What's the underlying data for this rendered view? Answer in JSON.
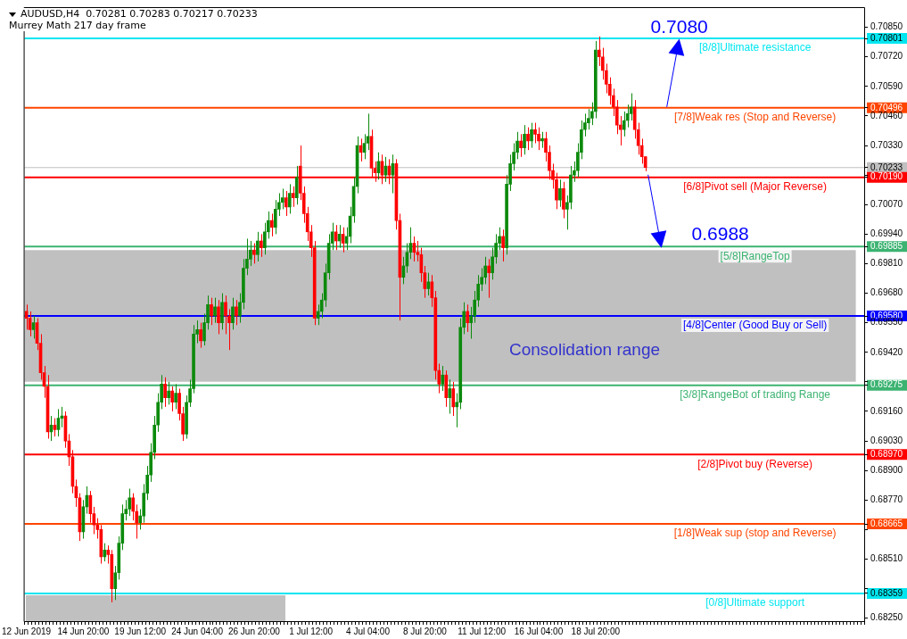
{
  "chart_data": {
    "type": "candlestick",
    "title": "AUDUSD,H4  0.70281 0.70283 0.70217 0.70233",
    "subtitle": "Murrey Math 217 day frame",
    "categories": [
      "12 Jun 2019",
      null,
      null,
      null,
      null,
      null,
      null,
      null,
      null,
      null,
      null,
      null,
      null,
      null,
      null,
      null,
      "14 Jun 20:00",
      null,
      null,
      null,
      null,
      null,
      null,
      null,
      null,
      null,
      null,
      null,
      null,
      null,
      null,
      null,
      "19 Jun 12:00",
      null,
      null,
      null,
      null,
      null,
      null,
      null,
      null,
      null,
      null,
      null,
      null,
      null,
      null,
      null,
      "24 Jun 04:00",
      null,
      null,
      null,
      null,
      null,
      null,
      null,
      null,
      null,
      null,
      null,
      null,
      null,
      null,
      null,
      "26 Jun 20:00",
      null,
      null,
      null,
      null,
      null,
      null,
      null,
      null,
      null,
      null,
      null,
      null,
      null,
      null,
      null,
      "1 Jul 12:00",
      null,
      null,
      null,
      null,
      null,
      null,
      null,
      null,
      null,
      null,
      null,
      null,
      null,
      null,
      null,
      "4 Jul 04:00",
      null,
      null,
      null,
      null,
      null,
      null,
      null,
      null,
      null,
      null,
      null,
      null,
      null,
      null,
      null,
      "8 Jul 20:00",
      null,
      null,
      null,
      null,
      null,
      null,
      null,
      null,
      null,
      null,
      null,
      null,
      null,
      null,
      null,
      "11 Jul 12:00",
      null,
      null,
      null,
      null,
      null,
      null,
      null,
      null,
      null,
      null,
      null,
      null,
      null,
      null,
      null,
      "16 Jul 04:00",
      null,
      null,
      null,
      null,
      null,
      null,
      null,
      null,
      null,
      null,
      null,
      null,
      null,
      null,
      null,
      "18 Jul 20:00",
      null,
      null,
      null,
      null,
      null,
      null,
      null,
      null,
      null,
      null,
      null,
      null,
      null,
      null,
      null,
      null,
      null,
      null,
      null,
      null,
      null,
      null,
      null,
      null,
      null,
      null,
      null,
      null,
      null,
      null,
      null,
      null,
      null,
      null,
      null,
      null,
      null,
      null,
      null,
      null,
      null,
      null,
      null,
      null,
      null,
      null,
      null,
      null,
      null,
      null,
      null,
      null,
      null,
      null,
      null,
      null,
      null,
      null,
      null,
      null,
      null,
      null,
      null,
      null,
      null,
      null,
      null,
      null,
      null,
      null,
      null,
      null,
      null,
      null,
      null
    ],
    "colors": [
      "#ff0000",
      "#ff0000",
      "#0c8a0c",
      "#ff0000",
      "#ff0000",
      "#ff0000",
      "#ff0000",
      "#0c8a0c",
      "#ff0000",
      "#0c8a0c",
      "#0c8a0c",
      "#ff0000",
      "#ff0000",
      "#ff0000",
      "#ff0000",
      "#ff0000",
      "#0c8a0c",
      "#0c8a0c",
      "#ff0000",
      "#ff0000",
      "#ff0000",
      "#ff0000",
      "#0c8a0c",
      "#ff0000",
      "#ff0000",
      "#0c8a0c",
      "#0c8a0c",
      "#0c8a0c",
      "#0c8a0c",
      "#0c8a0c",
      "#ff0000",
      "#ff0000",
      "#0c8a0c",
      "#0c8a0c",
      "#0c8a0c",
      "#0c8a0c",
      "#0c8a0c",
      "#0c8a0c",
      "#0c8a0c",
      "#ff0000",
      "#0c8a0c",
      "#ff0000",
      "#0c8a0c",
      "#ff0000",
      "#ff0000",
      "#0c8a0c",
      "#0c8a0c",
      "#0c8a0c",
      "#0c8a0c",
      "#ff0000",
      "#0c8a0c",
      "#0c8a0c",
      "#ff0000",
      "#0c8a0c",
      "#ff0000",
      "#0c8a0c",
      "#ff0000",
      "#ff0000",
      "#0c8a0c",
      "#ff0000",
      "#0c8a0c",
      "#0c8a0c",
      "#0c8a0c",
      "#0c8a0c",
      "#ff0000",
      "#0c8a0c",
      "#ff0000",
      "#0c8a0c",
      "#0c8a0c",
      "#ff0000",
      "#0c8a0c",
      "#0c8a0c",
      "#0c8a0c",
      "#ff0000",
      "#0c8a0c",
      "#ff0000",
      "#0c8a0c",
      "#ff0000",
      "#ff0000",
      "#ff0000",
      "#ff0000",
      "#ff0000",
      "#0c8a0c",
      "#0c8a0c",
      "#0c8a0c",
      "#0c8a0c",
      "#0c8a0c",
      "#ff0000",
      "#0c8a0c",
      "#ff0000",
      "#0c8a0c",
      "#0c8a0c",
      "#0c8a0c",
      "#0c8a0c",
      "#ff0000",
      "#0c8a0c",
      "#0c8a0c",
      "#ff0000",
      "#ff0000",
      "#0c8a0c",
      "#ff0000",
      "#0c8a0c",
      "#ff0000",
      "#0c8a0c",
      "#ff0000",
      "#ff0000",
      "#0c8a0c",
      "#0c8a0c",
      "#0c8a0c",
      "#ff0000",
      "#ff0000",
      "#ff0000",
      "#ff0000",
      "#0c8a0c",
      "#ff0000",
      "#ff0000",
      "#ff0000",
      "#0c8a0c",
      "#ff0000",
      "#0c8a0c",
      "#ff0000",
      "#0c8a0c",
      "#0c8a0c",
      "#0c8a0c",
      "#ff0000",
      "#0c8a0c",
      "#0c8a0c",
      "#0c8a0c",
      "#0c8a0c",
      "#0c8a0c",
      "#ff0000",
      "#0c8a0c",
      "#0c8a0c",
      "#0c8a0c",
      "#ff0000",
      "#0c8a0c",
      "#0c8a0c",
      "#0c8a0c",
      "#0c8a0c",
      "#ff0000",
      "#0c8a0c",
      "#ff0000",
      "#0c8a0c",
      "#ff0000",
      "#ff0000",
      "#0c8a0c",
      "#ff0000",
      "#ff0000",
      "#ff0000",
      "#ff0000",
      "#0c8a0c",
      "#ff0000",
      "#0c8a0c",
      "#0c8a0c",
      "#0c8a0c",
      "#0c8a0c",
      "#0c8a0c",
      "#0c8a0c",
      "#0c8a0c",
      "#0c8a0c",
      "#0c8a0c",
      "#ff0000",
      "#ff0000",
      "#ff0000",
      "#ff0000",
      "#ff0000",
      "#ff0000",
      "#ff0000",
      "#0c8a0c",
      "#0c8a0c",
      "#0c8a0c",
      "#ff0000",
      "#ff0000",
      "#ff0000",
      "#ff0000",
      null,
      null,
      null,
      null,
      null,
      null,
      null,
      null,
      null,
      null,
      null,
      null,
      null,
      null,
      null,
      null,
      null,
      null,
      null,
      null,
      null,
      null,
      null,
      null,
      null,
      null,
      null,
      null,
      null,
      null,
      null,
      null,
      null,
      null,
      null,
      null,
      null,
      null,
      null,
      null,
      null,
      null,
      null,
      null,
      null,
      null,
      null,
      null,
      null,
      null,
      null,
      null,
      null,
      null,
      null,
      null,
      null,
      null,
      null,
      null,
      null
    ],
    "ohlc": [
      [
        0.696,
        0.6963,
        0.6952,
        0.6957
      ],
      [
        0.6957,
        0.696,
        0.6949,
        0.6952
      ],
      [
        0.6952,
        0.6958,
        0.6948,
        0.6955
      ],
      [
        0.6955,
        0.6957,
        0.6943,
        0.6946
      ],
      [
        0.6946,
        0.695,
        0.693,
        0.6933
      ],
      [
        0.6933,
        0.6936,
        0.6922,
        0.6927
      ],
      [
        0.6927,
        0.6932,
        0.6904,
        0.6907
      ],
      [
        0.6907,
        0.6914,
        0.6903,
        0.691
      ],
      [
        0.691,
        0.6913,
        0.6905,
        0.6908
      ],
      [
        0.6908,
        0.6917,
        0.6905,
        0.6913
      ],
      [
        0.6913,
        0.6918,
        0.6909,
        0.6914
      ],
      [
        0.6914,
        0.6916,
        0.69,
        0.6903
      ],
      [
        0.6903,
        0.6906,
        0.6892,
        0.6896
      ],
      [
        0.6896,
        0.6899,
        0.688,
        0.6883
      ],
      [
        0.6883,
        0.6886,
        0.6874,
        0.6878
      ],
      [
        0.6878,
        0.688,
        0.6859,
        0.6863
      ],
      [
        0.6863,
        0.6877,
        0.686,
        0.6874
      ],
      [
        0.6874,
        0.6883,
        0.6871,
        0.6879
      ],
      [
        0.6879,
        0.6881,
        0.6867,
        0.6871
      ],
      [
        0.6871,
        0.6874,
        0.6862,
        0.6866
      ],
      [
        0.6866,
        0.6869,
        0.686,
        0.6864
      ],
      [
        0.6864,
        0.6866,
        0.6849,
        0.6852
      ],
      [
        0.6852,
        0.6858,
        0.685,
        0.6855
      ],
      [
        0.6855,
        0.6857,
        0.6849,
        0.6853
      ],
      [
        0.6853,
        0.6855,
        0.6832,
        0.6838
      ],
      [
        0.6838,
        0.6848,
        0.6833,
        0.6845
      ],
      [
        0.6845,
        0.6861,
        0.6842,
        0.6858
      ],
      [
        0.6858,
        0.6875,
        0.6855,
        0.6871
      ],
      [
        0.6871,
        0.6877,
        0.6868,
        0.6873
      ],
      [
        0.6873,
        0.6882,
        0.687,
        0.6878
      ],
      [
        0.6878,
        0.688,
        0.6868,
        0.6872
      ],
      [
        0.6872,
        0.6875,
        0.686,
        0.6867
      ],
      [
        0.6867,
        0.6873,
        0.6864,
        0.687
      ],
      [
        0.687,
        0.6884,
        0.6867,
        0.688
      ],
      [
        0.688,
        0.6892,
        0.6877,
        0.6888
      ],
      [
        0.6888,
        0.6902,
        0.6885,
        0.6898
      ],
      [
        0.6898,
        0.6914,
        0.6895,
        0.691
      ],
      [
        0.691,
        0.6924,
        0.6907,
        0.692
      ],
      [
        0.692,
        0.6932,
        0.6917,
        0.6928
      ],
      [
        0.6928,
        0.6931,
        0.6918,
        0.6922
      ],
      [
        0.6922,
        0.6929,
        0.6919,
        0.6925
      ],
      [
        0.6925,
        0.6927,
        0.6916,
        0.692
      ],
      [
        0.692,
        0.6928,
        0.6917,
        0.6924
      ],
      [
        0.6924,
        0.6926,
        0.6912,
        0.6915
      ],
      [
        0.6915,
        0.6918,
        0.6903,
        0.6906
      ],
      [
        0.6906,
        0.6923,
        0.6904,
        0.692
      ],
      [
        0.692,
        0.693,
        0.6918,
        0.6926
      ],
      [
        0.6926,
        0.6954,
        0.6924,
        0.695
      ],
      [
        0.695,
        0.6956,
        0.6946,
        0.6952
      ],
      [
        0.6952,
        0.6955,
        0.6944,
        0.6947
      ],
      [
        0.6947,
        0.6959,
        0.6945,
        0.6955
      ],
      [
        0.6955,
        0.6967,
        0.6952,
        0.6963
      ],
      [
        0.6963,
        0.6966,
        0.6954,
        0.6958
      ],
      [
        0.6958,
        0.6966,
        0.6955,
        0.6962
      ],
      [
        0.6962,
        0.6965,
        0.695,
        0.6955
      ],
      [
        0.6955,
        0.6968,
        0.6952,
        0.6964
      ],
      [
        0.6964,
        0.6967,
        0.695,
        0.6958
      ],
      [
        0.6958,
        0.6961,
        0.6943,
        0.6955
      ],
      [
        0.6955,
        0.6966,
        0.6952,
        0.6962
      ],
      [
        0.6962,
        0.6965,
        0.6954,
        0.6958
      ],
      [
        0.6958,
        0.6968,
        0.6955,
        0.6964
      ],
      [
        0.6964,
        0.6983,
        0.6961,
        0.6979
      ],
      [
        0.6979,
        0.6992,
        0.6976,
        0.6983
      ],
      [
        0.6983,
        0.6991,
        0.698,
        0.6987
      ],
      [
        0.6987,
        0.699,
        0.6981,
        0.6985
      ],
      [
        0.6985,
        0.6995,
        0.6982,
        0.6991
      ],
      [
        0.6991,
        0.6994,
        0.6984,
        0.6988
      ],
      [
        0.6988,
        0.6999,
        0.6985,
        0.6995
      ],
      [
        0.6995,
        0.7004,
        0.6992,
        0.7
      ],
      [
        0.7,
        0.7003,
        0.6993,
        0.6997
      ],
      [
        0.6997,
        0.7009,
        0.6994,
        0.7005
      ],
      [
        0.7005,
        0.7012,
        0.7002,
        0.7008
      ],
      [
        0.7008,
        0.7014,
        0.7005,
        0.701
      ],
      [
        0.701,
        0.7013,
        0.7002,
        0.7006
      ],
      [
        0.7006,
        0.7016,
        0.7003,
        0.7012
      ],
      [
        0.7012,
        0.7015,
        0.7006,
        0.701
      ],
      [
        0.701,
        0.7024,
        0.7007,
        0.7019
      ],
      [
        0.7024,
        0.7033,
        0.7009,
        0.7012
      ],
      [
        0.7012,
        0.7015,
        0.6999,
        0.7003
      ],
      [
        0.7003,
        0.7006,
        0.6991,
        0.6995
      ],
      [
        0.6995,
        0.6998,
        0.6984,
        0.6988
      ],
      [
        0.6988,
        0.6991,
        0.6954,
        0.6957
      ],
      [
        0.6957,
        0.6963,
        0.6954,
        0.696
      ],
      [
        0.696,
        0.6968,
        0.6957,
        0.6965
      ],
      [
        0.6965,
        0.6981,
        0.6962,
        0.6977
      ],
      [
        0.6977,
        0.6994,
        0.6974,
        0.699
      ],
      [
        0.699,
        0.6999,
        0.6987,
        0.6995
      ],
      [
        0.6995,
        0.6998,
        0.6987,
        0.6991
      ],
      [
        0.6991,
        0.6998,
        0.6988,
        0.6994
      ],
      [
        0.6994,
        0.6997,
        0.6986,
        0.699
      ],
      [
        0.699,
        0.6997,
        0.6987,
        0.6993
      ],
      [
        0.6993,
        0.7006,
        0.699,
        0.7002
      ],
      [
        0.7002,
        0.7019,
        0.6999,
        0.7015
      ],
      [
        0.7015,
        0.7037,
        0.7012,
        0.7033
      ],
      [
        0.7033,
        0.7036,
        0.7026,
        0.703
      ],
      [
        0.703,
        0.7038,
        0.7027,
        0.7034
      ],
      [
        0.7034,
        0.7047,
        0.7031,
        0.7037
      ],
      [
        0.7037,
        0.704,
        0.7019,
        0.7023
      ],
      [
        0.7023,
        0.7026,
        0.7017,
        0.7021
      ],
      [
        0.7021,
        0.703,
        0.7018,
        0.7026
      ],
      [
        0.7026,
        0.7029,
        0.7016,
        0.702
      ],
      [
        0.702,
        0.7028,
        0.7017,
        0.7024
      ],
      [
        0.7024,
        0.7027,
        0.7016,
        0.702
      ],
      [
        0.702,
        0.7029,
        0.7012,
        0.7025
      ],
      [
        0.7025,
        0.7027,
        0.6996,
        0.7
      ],
      [
        0.7,
        0.7003,
        0.6956,
        0.6975
      ],
      [
        0.6975,
        0.6984,
        0.6972,
        0.698
      ],
      [
        0.698,
        0.699,
        0.6977,
        0.6986
      ],
      [
        0.6986,
        0.6997,
        0.6983,
        0.699
      ],
      [
        0.699,
        0.6993,
        0.6982,
        0.6986
      ],
      [
        0.6986,
        0.6991,
        0.6982,
        0.6985
      ],
      [
        0.6985,
        0.6988,
        0.6973,
        0.6977
      ],
      [
        0.6977,
        0.698,
        0.6966,
        0.697
      ],
      [
        0.697,
        0.6977,
        0.6967,
        0.6973
      ],
      [
        0.6973,
        0.6976,
        0.6962,
        0.6966
      ],
      [
        0.6966,
        0.6969,
        0.693,
        0.6934
      ],
      [
        0.6934,
        0.6937,
        0.6924,
        0.6928
      ],
      [
        0.6928,
        0.6936,
        0.6925,
        0.6932
      ],
      [
        0.6932,
        0.6934,
        0.6918,
        0.6922
      ],
      [
        0.6922,
        0.693,
        0.6915,
        0.6926
      ],
      [
        0.6926,
        0.6929,
        0.6914,
        0.6918
      ],
      [
        0.6918,
        0.6924,
        0.6909,
        0.692
      ],
      [
        0.692,
        0.6957,
        0.6917,
        0.6953
      ],
      [
        0.6953,
        0.6964,
        0.695,
        0.696
      ],
      [
        0.696,
        0.6963,
        0.6951,
        0.6955
      ],
      [
        0.6955,
        0.6962,
        0.6948,
        0.6958
      ],
      [
        0.6958,
        0.6969,
        0.6955,
        0.6965
      ],
      [
        0.6965,
        0.6976,
        0.6962,
        0.6972
      ],
      [
        0.6972,
        0.6979,
        0.6969,
        0.6975
      ],
      [
        0.6975,
        0.6984,
        0.6972,
        0.698
      ],
      [
        0.698,
        0.6983,
        0.6966,
        0.6977
      ],
      [
        0.6977,
        0.6988,
        0.6974,
        0.6984
      ],
      [
        0.6984,
        0.6994,
        0.6981,
        0.699
      ],
      [
        0.699,
        0.6997,
        0.6987,
        0.6993
      ],
      [
        0.6993,
        0.6996,
        0.6982,
        0.6988
      ],
      [
        0.6988,
        0.702,
        0.6985,
        0.7016
      ],
      [
        0.7016,
        0.7029,
        0.7013,
        0.7025
      ],
      [
        0.7025,
        0.7034,
        0.7022,
        0.703
      ],
      [
        0.703,
        0.7039,
        0.7027,
        0.7035
      ],
      [
        0.7035,
        0.7038,
        0.7028,
        0.7032
      ],
      [
        0.7032,
        0.7042,
        0.7029,
        0.7038
      ],
      [
        0.7038,
        0.7041,
        0.7031,
        0.7035
      ],
      [
        0.7035,
        0.7043,
        0.7032,
        0.704
      ],
      [
        0.704,
        0.7043,
        0.7034,
        0.7038
      ],
      [
        0.7038,
        0.7041,
        0.7031,
        0.7035
      ],
      [
        0.7035,
        0.7039,
        0.7032,
        0.7036
      ],
      [
        0.7036,
        0.7039,
        0.7026,
        0.703
      ],
      [
        0.703,
        0.7033,
        0.7018,
        0.7022
      ],
      [
        0.7022,
        0.7025,
        0.7014,
        0.7018
      ],
      [
        0.7018,
        0.7021,
        0.7005,
        0.7009
      ],
      [
        0.7009,
        0.7018,
        0.7006,
        0.7014
      ],
      [
        0.7014,
        0.7017,
        0.7001,
        0.7005
      ],
      [
        0.7005,
        0.7011,
        0.6996,
        0.7008
      ],
      [
        0.7008,
        0.7024,
        0.7005,
        0.702
      ],
      [
        0.702,
        0.7026,
        0.7017,
        0.7022
      ],
      [
        0.7022,
        0.7034,
        0.7019,
        0.703
      ],
      [
        0.703,
        0.7044,
        0.7027,
        0.704
      ],
      [
        0.704,
        0.7047,
        0.7037,
        0.7043
      ],
      [
        0.7043,
        0.7049,
        0.704,
        0.7045
      ],
      [
        0.7045,
        0.7052,
        0.7042,
        0.7048
      ],
      [
        0.7048,
        0.7079,
        0.7045,
        0.7075
      ],
      [
        0.7075,
        0.7081,
        0.7068,
        0.7072
      ],
      [
        0.7072,
        0.7076,
        0.7062,
        0.7066
      ],
      [
        0.7066,
        0.7069,
        0.7056,
        0.706
      ],
      [
        0.706,
        0.7063,
        0.7051,
        0.7055
      ],
      [
        0.7055,
        0.7058,
        0.7046,
        0.705
      ],
      [
        0.705,
        0.7053,
        0.7038,
        0.7042
      ],
      [
        0.7042,
        0.7046,
        0.7033,
        0.704
      ],
      [
        0.704,
        0.7048,
        0.7037,
        0.7044
      ],
      [
        0.7044,
        0.7051,
        0.7041,
        0.7047
      ],
      [
        0.7047,
        0.7056,
        0.7044,
        0.705
      ],
      [
        0.705,
        0.7053,
        0.7036,
        0.704
      ],
      [
        0.704,
        0.7043,
        0.7029,
        0.7033
      ],
      [
        0.7033,
        0.7036,
        0.7025,
        0.7028
      ],
      [
        0.70281,
        0.70283,
        0.70217,
        0.70233
      ],
      null,
      null,
      null,
      null,
      null,
      null,
      null,
      null,
      null,
      null,
      null,
      null,
      null,
      null,
      null,
      null,
      null,
      null,
      null,
      null,
      null,
      null,
      null,
      null,
      null,
      null,
      null,
      null,
      null,
      null,
      null,
      null,
      null,
      null,
      null,
      null,
      null,
      null,
      null,
      null,
      null,
      null,
      null,
      null,
      null,
      null,
      null,
      null,
      null,
      null,
      null,
      null,
      null,
      null,
      null,
      null,
      null,
      null,
      null,
      null,
      null
    ],
    "ylim": [
      0.68237,
      0.70935
    ],
    "yticks": [
      {
        "value": 0.7085,
        "label": "0.70850"
      },
      {
        "value": 0.70801,
        "label": "0.70801"
      },
      {
        "value": 0.7072,
        "label": "0.70720"
      },
      {
        "value": 0.7059,
        "label": "0.70590"
      },
      {
        "value": 0.70496,
        "label": "0.70496"
      },
      {
        "value": 0.7046,
        "label": "0.70460"
      },
      {
        "value": 0.7033,
        "label": "0.70330"
      },
      {
        "value": 0.70233,
        "label": "0.70233"
      },
      {
        "value": 0.702,
        "label": null
      },
      {
        "value": 0.7019,
        "label": "0.70190"
      },
      {
        "value": 0.7007,
        "label": "0.70070"
      },
      {
        "value": 0.6994,
        "label": "0.69940"
      },
      {
        "value": 0.69885,
        "label": "0.69885"
      },
      {
        "value": 0.6981,
        "label": "0.69810"
      },
      {
        "value": 0.6968,
        "label": "0.69680"
      },
      {
        "value": 0.6958,
        "label": "0.69580"
      },
      {
        "value": 0.6955,
        "label": "0.69550"
      },
      {
        "value": 0.6942,
        "label": "0.69420"
      },
      {
        "value": 0.6929,
        "label": null
      },
      {
        "value": 0.69275,
        "label": "0.69275"
      },
      {
        "value": 0.6916,
        "label": "0.69160"
      },
      {
        "value": 0.6903,
        "label": "0.69030"
      },
      {
        "value": 0.6897,
        "label": "0.68970"
      },
      {
        "value": 0.689,
        "label": "0.68900"
      },
      {
        "value": 0.6877,
        "label": "0.68770"
      },
      {
        "value": 0.68665,
        "label": "0.68665"
      },
      {
        "value": 0.6864,
        "label": null
      },
      {
        "value": 0.6851,
        "label": "0.68510"
      },
      {
        "value": 0.6838,
        "label": null
      },
      {
        "value": 0.68359,
        "label": "0.68359"
      },
      {
        "value": 0.6825,
        "label": "0.68250"
      }
    ],
    "ref_lines": [
      {
        "axis": "y",
        "value": 0.70801,
        "label": "[8/8]Ultimate resistance",
        "color": "#00e6f0"
      },
      {
        "axis": "y",
        "value": 0.70496,
        "label": "[7/8]Weak res (Stop and Reverse)",
        "color": "#ff4500"
      },
      {
        "axis": "y",
        "value": 0.70233,
        "label": null,
        "color": "#c0c0c0"
      },
      {
        "axis": "y",
        "value": 0.7019,
        "label": "[6/8]Pivot sell (Major Reverse)",
        "color": "#ff0000"
      },
      {
        "axis": "y",
        "value": 0.69885,
        "label": "[5/8]RangeTop",
        "color": "#3cb371"
      },
      {
        "axis": "y",
        "value": 0.6958,
        "label": "[4/8]Center (Good Buy or Sell)",
        "color": "#0000ff"
      },
      {
        "axis": "y",
        "value": 0.69275,
        "label": "[3/8]RangeBot of trading Range",
        "color": "#3cb371"
      },
      {
        "axis": "y",
        "value": 0.6897,
        "label": "[2/8]Pivot buy (Reverse)",
        "color": "#ff0000"
      },
      {
        "axis": "y",
        "value": 0.68665,
        "label": "[1/8]Weak sup (stop and Reverse)",
        "color": "#ff4500"
      },
      {
        "axis": "y",
        "value": 0.68359,
        "label": "[0/8]Ultimate support",
        "color": "#00e6f0"
      }
    ],
    "bands": [
      {
        "axis": "y",
        "from": 0.6929,
        "to": 0.6987,
        "label": "Consolidation range",
        "color": "#c0c0c0"
      }
    ],
    "annotations": [
      {
        "text": "0.7080",
        "y": 0.708
      },
      {
        "text": "0.6988",
        "y": 0.6988
      }
    ]
  }
}
